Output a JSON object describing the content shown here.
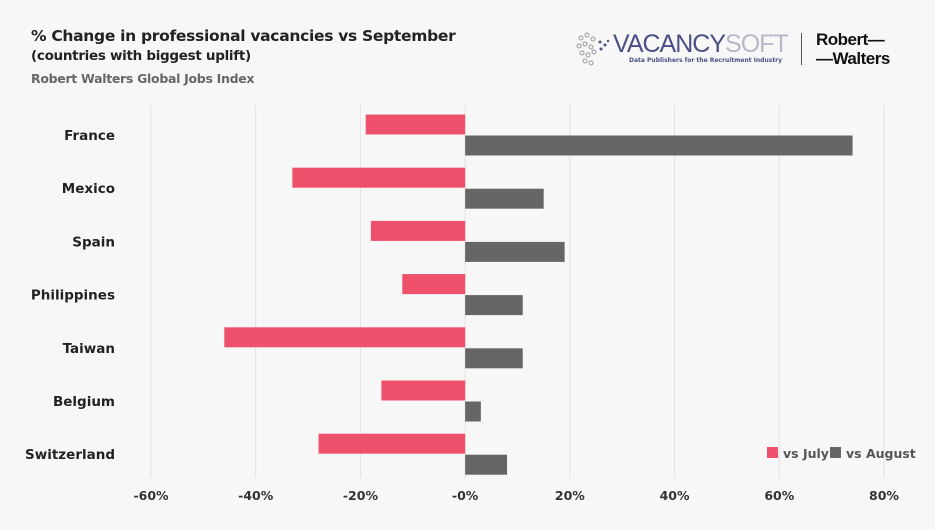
{
  "header": {
    "title": "% Change in professional vacancies vs September",
    "subtitle": "(countries with biggest uplift)",
    "source": "Robert Walters Global Jobs Index"
  },
  "logos": {
    "vacancysoft_a": "VACANCY",
    "vacancysoft_b": "SOFT",
    "vacancysoft_tagline": "Data Publishers for the Recruitment Industry",
    "robert_walters_line1": "Robert—",
    "robert_walters_line2": "—Walters"
  },
  "chart_data": {
    "type": "bar",
    "orientation": "horizontal",
    "title": "% Change in professional vacancies vs September",
    "categories": [
      "France",
      "Mexico",
      "Spain",
      "Philippines",
      "Taiwan",
      "Belgium",
      "Switzerland"
    ],
    "series": [
      {
        "name": "vs July",
        "color": "#ef506b",
        "values": [
          -19,
          -33,
          -18,
          -12,
          -46,
          -16,
          -28
        ]
      },
      {
        "name": "vs August",
        "color": "#666666",
        "values": [
          74,
          15,
          19,
          11,
          11,
          3,
          8
        ]
      }
    ],
    "xlim": [
      -60,
      80
    ],
    "xticks": [
      -60,
      -40,
      -20,
      0,
      20,
      40,
      60,
      80
    ],
    "xtick_labels": [
      "-60%",
      "-40%",
      "-20%",
      "-0%",
      "20%",
      "40%",
      "60%",
      "80%"
    ],
    "grid": true,
    "legend_position": "bottom-right"
  }
}
